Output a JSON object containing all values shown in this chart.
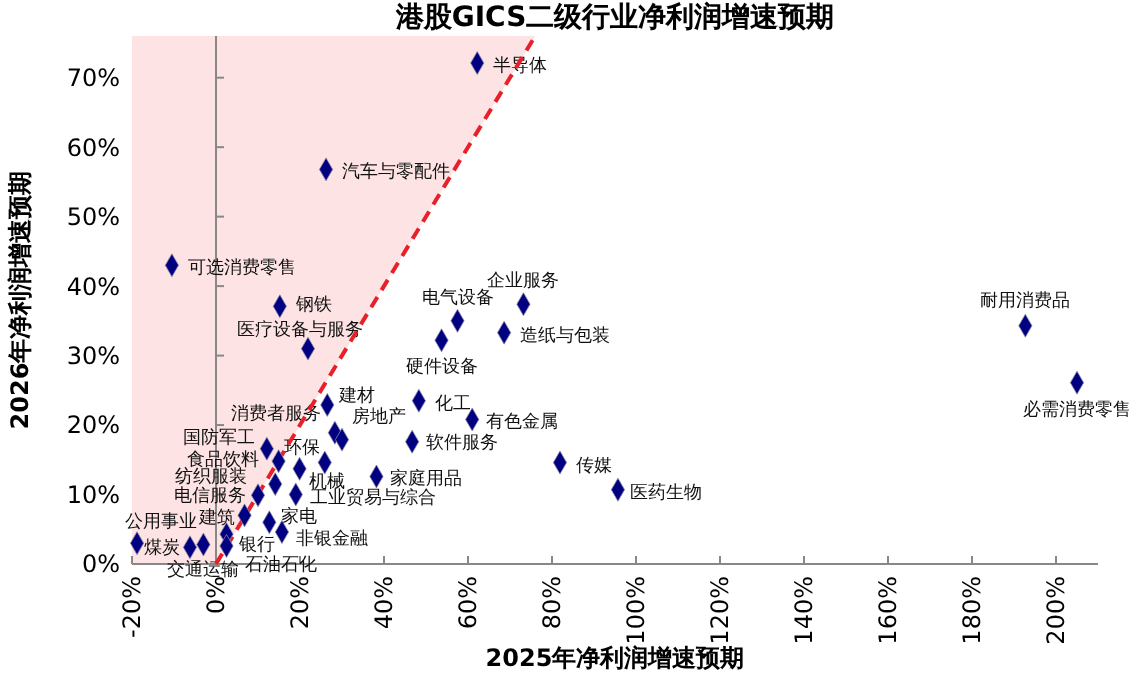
{
  "chart_data": {
    "type": "scatter",
    "title": "港股GICS二级行业净利润增速预期",
    "xlabel": "2025年净利润增速预期",
    "ylabel": "2026年净利润增速预期",
    "xlim": [
      -20,
      210
    ],
    "ylim": [
      0,
      76
    ],
    "xticks": [
      {
        "value": -20,
        "label": "-20%"
      },
      {
        "value": 0,
        "label": "0%"
      },
      {
        "value": 20,
        "label": "20%"
      },
      {
        "value": 40,
        "label": "40%"
      },
      {
        "value": 60,
        "label": "60%"
      },
      {
        "value": 80,
        "label": "80%"
      },
      {
        "value": 100,
        "label": "100%"
      },
      {
        "value": 120,
        "label": "120%"
      },
      {
        "value": 140,
        "label": "140%"
      },
      {
        "value": 160,
        "label": "160%"
      },
      {
        "value": 180,
        "label": "180%"
      },
      {
        "value": 200,
        "label": "200%"
      }
    ],
    "yticks": [
      {
        "value": 0,
        "label": "0%"
      },
      {
        "value": 10,
        "label": "10%"
      },
      {
        "value": 20,
        "label": "20%"
      },
      {
        "value": 30,
        "label": "30%"
      },
      {
        "value": 40,
        "label": "40%"
      },
      {
        "value": 50,
        "label": "50%"
      },
      {
        "value": 60,
        "label": "60%"
      },
      {
        "value": 70,
        "label": "70%"
      }
    ],
    "series": [
      {
        "type": "line",
        "color": "#e8202a",
        "line_style": "dashed",
        "x": [
          0,
          76
        ],
        "values": [
          0,
          76
        ]
      },
      {
        "color": "#000080",
        "marker": "diamond",
        "x": [
          62.2,
          26.2,
          -10.5,
          15.2,
          57.5,
          73.2,
          68.6,
          21.9,
          53.7,
          192.7,
          205,
          26.5,
          48.3,
          61,
          28.3,
          30,
          12.1,
          14.9,
          14.1,
          25.9,
          19.9,
          38.2,
          46.7,
          81.9,
          95.7,
          10,
          19,
          12.7,
          15.7,
          2.5,
          6.8,
          -18.8,
          -6.2,
          -3,
          2.5
        ],
        "values": [
          72.1,
          56.8,
          43,
          37.1,
          35,
          37.4,
          33.3,
          31,
          32.2,
          34.3,
          26.1,
          22.9,
          23.5,
          20.8,
          18.9,
          17.9,
          16.6,
          14.8,
          11.5,
          14.6,
          13.7,
          12.6,
          17.6,
          14.6,
          10.7,
          9.9,
          10,
          6,
          4.6,
          4.3,
          7,
          3,
          2.4,
          2.8,
          2.6
        ]
      }
    ],
    "annotations": [
      {
        "text": "半导体",
        "x": 62.2,
        "y": 72.1
      },
      {
        "text": "汽车与零配件",
        "x": 26.2,
        "y": 56.8
      },
      {
        "text": "可选消费零售",
        "x": -10.5,
        "y": 43
      },
      {
        "text": "钢铁",
        "x": 15.2,
        "y": 37.1
      },
      {
        "text": "电气设备",
        "x": 57.5,
        "y": 35
      },
      {
        "text": "企业服务",
        "x": 73.2,
        "y": 37.4
      },
      {
        "text": "造纸与包装",
        "x": 68.6,
        "y": 33.3
      },
      {
        "text": "医疗设备与服务",
        "x": 21.9,
        "y": 31
      },
      {
        "text": "硬件设备",
        "x": 53.7,
        "y": 32.2
      },
      {
        "text": "耐用消费品",
        "x": 192.7,
        "y": 34.3
      },
      {
        "text": "必需消费零售",
        "x": 205,
        "y": 26.1
      },
      {
        "text": "建材",
        "x": 26.5,
        "y": 22.9
      },
      {
        "text": "化工",
        "x": 48.3,
        "y": 23.5
      },
      {
        "text": "有色金属",
        "x": 61,
        "y": 20.8
      },
      {
        "text": "消费者服务",
        "x": 28.3,
        "y": 18.9
      },
      {
        "text": "房地产",
        "x": 30,
        "y": 17.9
      },
      {
        "text": "国防军工",
        "x": 12.1,
        "y": 16.6
      },
      {
        "text": "食品饮料",
        "x": 14.9,
        "y": 14.8
      },
      {
        "text": "纺织服装",
        "x": 14.1,
        "y": 11.5
      },
      {
        "text": "机械",
        "x": 25.9,
        "y": 14.6
      },
      {
        "text": "环保",
        "x": 19.9,
        "y": 13.7
      },
      {
        "text": "家庭用品",
        "x": 38.2,
        "y": 12.6
      },
      {
        "text": "软件服务",
        "x": 46.7,
        "y": 17.6
      },
      {
        "text": "传媒",
        "x": 81.9,
        "y": 14.6
      },
      {
        "text": "医药生物",
        "x": 95.7,
        "y": 10.7
      },
      {
        "text": "电信服务",
        "x": 10,
        "y": 9.9
      },
      {
        "text": "工业贸易与综合",
        "x": 19,
        "y": 10
      },
      {
        "text": "家电",
        "x": 12.7,
        "y": 6
      },
      {
        "text": "非银金融",
        "x": 15.7,
        "y": 4.6
      },
      {
        "text": "银行",
        "x": 2.5,
        "y": 4.3
      },
      {
        "text": "建筑",
        "x": 6.8,
        "y": 7
      },
      {
        "text": "公用事业",
        "x": -18.8,
        "y": 3
      },
      {
        "text": "煤炭",
        "x": -6.2,
        "y": 2.4
      },
      {
        "text": "交通运输",
        "x": -3,
        "y": 2.8
      },
      {
        "text": "石油石化",
        "x": 2.5,
        "y": 2.6
      }
    ]
  }
}
